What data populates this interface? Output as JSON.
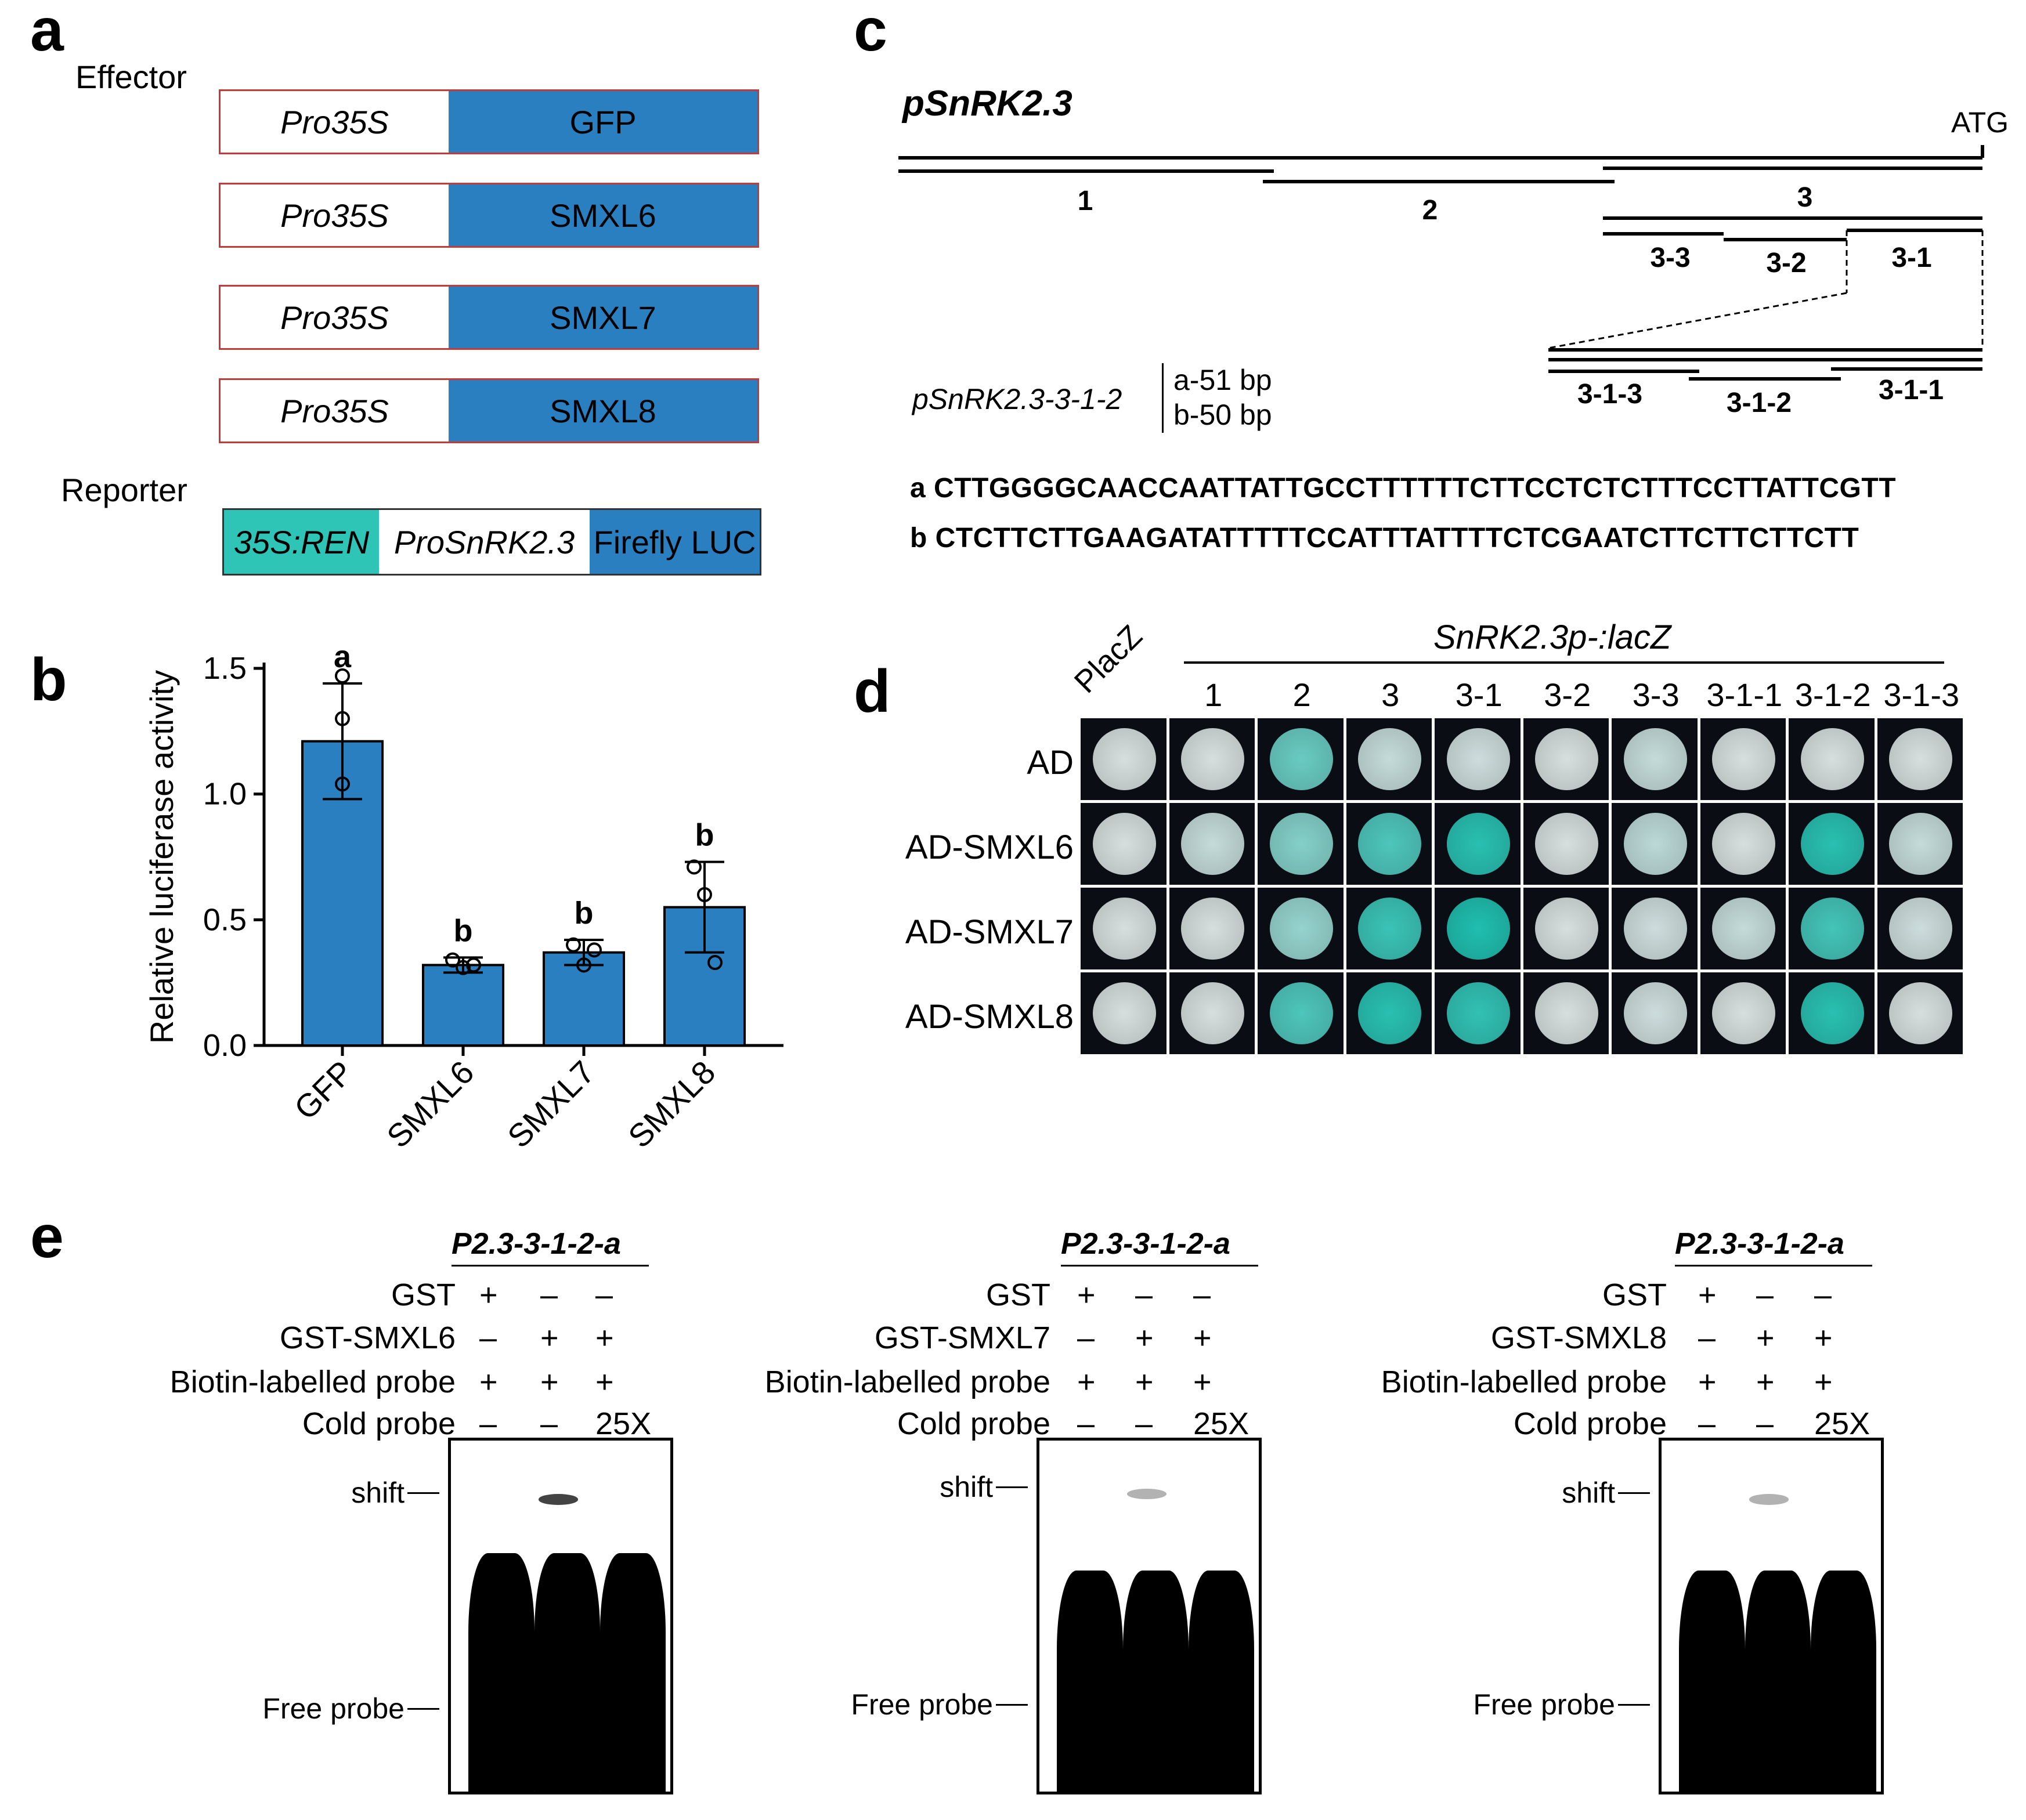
{
  "panels": {
    "a": "a",
    "b": "b",
    "c": "c",
    "d": "d",
    "e": "e"
  },
  "panel_a": {
    "effector_label": "Effector",
    "reporter_label": "Reporter",
    "constructs": [
      {
        "promoter": "Pro35S",
        "gene": "GFP"
      },
      {
        "promoter": "Pro35S",
        "gene": "SMXL6"
      },
      {
        "promoter": "Pro35S",
        "gene": "SMXL7"
      },
      {
        "promoter": "Pro35S",
        "gene": "SMXL8"
      }
    ],
    "reporter": {
      "part1": "35S:REN",
      "part2": "ProSnRK2.3",
      "part3": "Firefly LUC"
    },
    "colors": {
      "gene": "#2a7fc0",
      "ren": "#2ec4b6",
      "border": "#c23a3a"
    }
  },
  "chart_data": {
    "type": "bar",
    "categories": [
      "GFP",
      "SMXL6",
      "SMXL7",
      "SMXL8"
    ],
    "values": [
      1.21,
      0.32,
      0.37,
      0.55
    ],
    "error": [
      0.23,
      0.03,
      0.05,
      0.18
    ],
    "points": [
      [
        1.47,
        1.3,
        1.04
      ],
      [
        0.34,
        0.31,
        0.32
      ],
      [
        0.4,
        0.32,
        0.38
      ],
      [
        0.71,
        0.6,
        0.33
      ]
    ],
    "letters": [
      "a",
      "b",
      "b",
      "b"
    ],
    "ylabel": "Relative luciferase activity",
    "yticks": [
      "0.0",
      "0.5",
      "1.0",
      "1.5"
    ],
    "ylim": [
      0,
      1.5
    ],
    "bar_color": "#2a7fc0"
  },
  "panel_c": {
    "title": "pSnRK2.3",
    "atg": "ATG",
    "segments": [
      "1",
      "2",
      "3",
      "3-3",
      "3-2",
      "3-1",
      "3-1-3",
      "3-1-2",
      "3-1-1"
    ],
    "fragment_name": "pSnRK2.3-3-1-2",
    "fragment_a": "a-51 bp",
    "fragment_b": "b-50 bp",
    "seq_a": "a CTTGGGGCAACCAATTATTGCCTTTTTTCTTCCTCTCTTTCCTTATTCGTT",
    "seq_b": "b CTCTTCTTGAAGATATTTTTCCATTTATTTTCTCGAATCTTCTTCTTCTT"
  },
  "panel_d": {
    "header": "SnRK2.3p-:lacZ",
    "columns": [
      "PlacZ",
      "1",
      "2",
      "3",
      "3-1",
      "3-2",
      "3-3",
      "3-1-1",
      "3-1-2",
      "3-1-3"
    ],
    "rows": [
      "AD",
      "AD-SMXL6",
      "AD-SMXL7",
      "AD-SMXL8"
    ],
    "intensity": [
      [
        0,
        0,
        0.6,
        0.1,
        0.05,
        0,
        0.1,
        0,
        0,
        0
      ],
      [
        0,
        0.1,
        0.45,
        0.75,
        0.95,
        0,
        0.15,
        0,
        0.95,
        0.1
      ],
      [
        0,
        0,
        0.35,
        0.85,
        1.0,
        0,
        0.05,
        0.1,
        0.8,
        0.05
      ],
      [
        0,
        0,
        0.75,
        0.95,
        0.9,
        0,
        0.05,
        0,
        0.95,
        0
      ]
    ]
  },
  "panel_e": {
    "gels": [
      {
        "probe": "P2.3-3-1-2-a",
        "protein_label": "GST-SMXL6",
        "gst": [
          "+",
          "–",
          "–"
        ],
        "protein": [
          "–",
          "+",
          "+"
        ],
        "biotin": [
          "+",
          "+",
          "+"
        ],
        "cold": [
          "–",
          "–",
          "25X"
        ]
      },
      {
        "probe": "P2.3-3-1-2-a",
        "protein_label": "GST-SMXL7",
        "gst": [
          "+",
          "–",
          "–"
        ],
        "protein": [
          "–",
          "+",
          "+"
        ],
        "biotin": [
          "+",
          "+",
          "+"
        ],
        "cold": [
          "–",
          "–",
          "25X"
        ]
      },
      {
        "probe": "P2.3-3-1-2-a",
        "protein_label": "GST-SMXL8",
        "gst": [
          "+",
          "–",
          "–"
        ],
        "protein": [
          "–",
          "+",
          "+"
        ],
        "biotin": [
          "+",
          "+",
          "+"
        ],
        "cold": [
          "–",
          "–",
          "25X"
        ]
      }
    ],
    "gst_label": "GST",
    "biotin_label": "Biotin-labelled probe",
    "cold_label": "Cold probe",
    "shift_label": "shift",
    "free_label": "Free probe"
  }
}
